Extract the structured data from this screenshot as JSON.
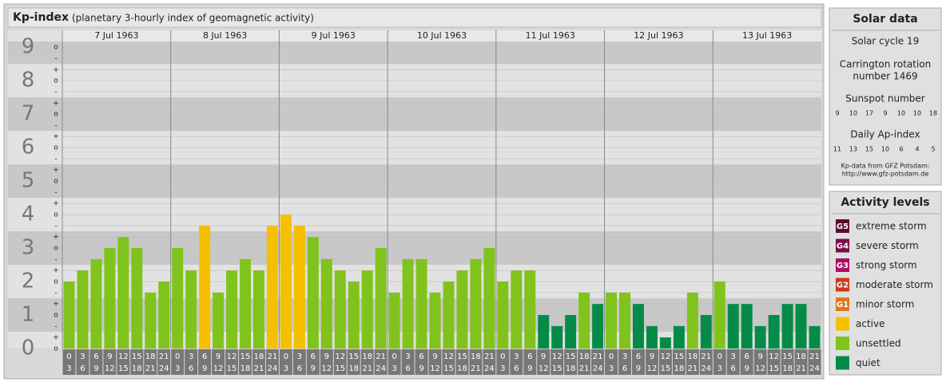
{
  "chart_data": {
    "type": "bar",
    "title": "Kp-index",
    "subtitle": "(planetary 3-hourly index of geomagnetic activity)",
    "ylim": [
      0,
      9.17
    ],
    "yticks": [
      0,
      1,
      2,
      3,
      4,
      5,
      6,
      7,
      8,
      9
    ],
    "minor_yticks": [
      {
        "value": 0,
        "label": "o"
      },
      {
        "value": 0.33,
        "label": "+"
      },
      {
        "value": 0.67,
        "label": "-"
      },
      {
        "value": 1,
        "label": "o"
      },
      {
        "value": 1.33,
        "label": "+"
      },
      {
        "value": 1.67,
        "label": "-"
      },
      {
        "value": 2,
        "label": "o"
      },
      {
        "value": 2.33,
        "label": "+"
      },
      {
        "value": 2.67,
        "label": "-"
      },
      {
        "value": 3,
        "label": "o"
      },
      {
        "value": 3.33,
        "label": "+"
      },
      {
        "value": 3.67,
        "label": "-"
      },
      {
        "value": 4,
        "label": "o"
      },
      {
        "value": 4.33,
        "label": "+"
      },
      {
        "value": 4.67,
        "label": "-"
      },
      {
        "value": 5,
        "label": "o"
      },
      {
        "value": 5.33,
        "label": "+"
      },
      {
        "value": 5.67,
        "label": "-"
      },
      {
        "value": 6,
        "label": "o"
      },
      {
        "value": 6.33,
        "label": "+"
      },
      {
        "value": 6.67,
        "label": "-"
      },
      {
        "value": 7,
        "label": "o"
      },
      {
        "value": 7.33,
        "label": "+"
      },
      {
        "value": 7.67,
        "label": "-"
      },
      {
        "value": 8,
        "label": "o"
      },
      {
        "value": 8.33,
        "label": "+"
      },
      {
        "value": 8.67,
        "label": "-"
      },
      {
        "value": 9,
        "label": "o"
      }
    ],
    "hours_start": [
      "0",
      "3",
      "6",
      "9",
      "12",
      "15",
      "18",
      "21"
    ],
    "hours_end": [
      "3",
      "6",
      "9",
      "12",
      "15",
      "18",
      "21",
      "24"
    ],
    "days": [
      {
        "date": "7 Jul 1963",
        "values": [
          2,
          2.33,
          2.67,
          3,
          3.33,
          3,
          1.67,
          2
        ],
        "colors": [
          "#80c31c",
          "#80c31c",
          "#80c31c",
          "#80c31c",
          "#80c31c",
          "#80c31c",
          "#80c31c",
          "#80c31c"
        ]
      },
      {
        "date": "8 Jul 1963",
        "values": [
          3,
          2.33,
          3.67,
          1.67,
          2.33,
          2.67,
          2.33,
          3.67
        ],
        "colors": [
          "#80c31c",
          "#80c31c",
          "#f5c000",
          "#80c31c",
          "#80c31c",
          "#80c31c",
          "#80c31c",
          "#f5c000"
        ]
      },
      {
        "date": "9 Jul 1963",
        "values": [
          4,
          3.67,
          3.33,
          2.67,
          2.33,
          2,
          2.33,
          3
        ],
        "colors": [
          "#f5c000",
          "#f5c000",
          "#80c31c",
          "#80c31c",
          "#80c31c",
          "#80c31c",
          "#80c31c",
          "#80c31c"
        ]
      },
      {
        "date": "10 Jul 1963",
        "values": [
          1.67,
          2.67,
          2.67,
          1.67,
          2,
          2.33,
          2.67,
          3
        ],
        "colors": [
          "#80c31c",
          "#80c31c",
          "#80c31c",
          "#80c31c",
          "#80c31c",
          "#80c31c",
          "#80c31c",
          "#80c31c"
        ]
      },
      {
        "date": "11 Jul 1963",
        "values": [
          2,
          2.33,
          2.33,
          1,
          0.67,
          1,
          1.67,
          1.33
        ],
        "colors": [
          "#80c31c",
          "#80c31c",
          "#80c31c",
          "#058b48",
          "#058b48",
          "#058b48",
          "#80c31c",
          "#058b48"
        ]
      },
      {
        "date": "12 Jul 1963",
        "values": [
          1.67,
          1.67,
          1.33,
          0.67,
          0.33,
          0.67,
          1.67,
          1
        ],
        "colors": [
          "#80c31c",
          "#80c31c",
          "#058b48",
          "#058b48",
          "#058b48",
          "#058b48",
          "#80c31c",
          "#058b48"
        ]
      },
      {
        "date": "13 Jul 1963",
        "values": [
          2,
          1.33,
          1.33,
          0.67,
          1,
          1.33,
          1.33,
          0.67
        ],
        "colors": [
          "#80c31c",
          "#058b48",
          "#058b48",
          "#058b48",
          "#058b48",
          "#058b48",
          "#058b48",
          "#058b48"
        ]
      }
    ]
  },
  "solar": {
    "title": "Solar data",
    "cycle": "Solar cycle 19",
    "rotation_1": "Carrington rotation",
    "rotation_2": "number 1469",
    "sunspot_title": "Sunspot number",
    "sunspot": [
      9,
      10,
      17,
      9,
      10,
      10,
      18
    ],
    "ap_title": "Daily Ap-index",
    "ap": [
      11,
      13,
      15,
      10,
      6,
      4,
      5
    ],
    "source_1": "Kp-data from GFZ Potsdam:",
    "source_2": "http://www.gfz-potsdam.de"
  },
  "levels": {
    "title": "Activity levels",
    "items": [
      {
        "code": "G5",
        "label": "extreme storm",
        "color": "#5c0a30"
      },
      {
        "code": "G4",
        "label": "severe storm",
        "color": "#7c0c48"
      },
      {
        "code": "G3",
        "label": "strong storm",
        "color": "#a8105e"
      },
      {
        "code": "G2",
        "label": "moderate storm",
        "color": "#cc3a1c"
      },
      {
        "code": "G1",
        "label": "minor storm",
        "color": "#e0781a"
      },
      {
        "label": "active",
        "color": "#f5c000"
      },
      {
        "label": "unsettled",
        "color": "#80c31c"
      },
      {
        "label": "quiet",
        "color": "#058b48"
      }
    ]
  }
}
